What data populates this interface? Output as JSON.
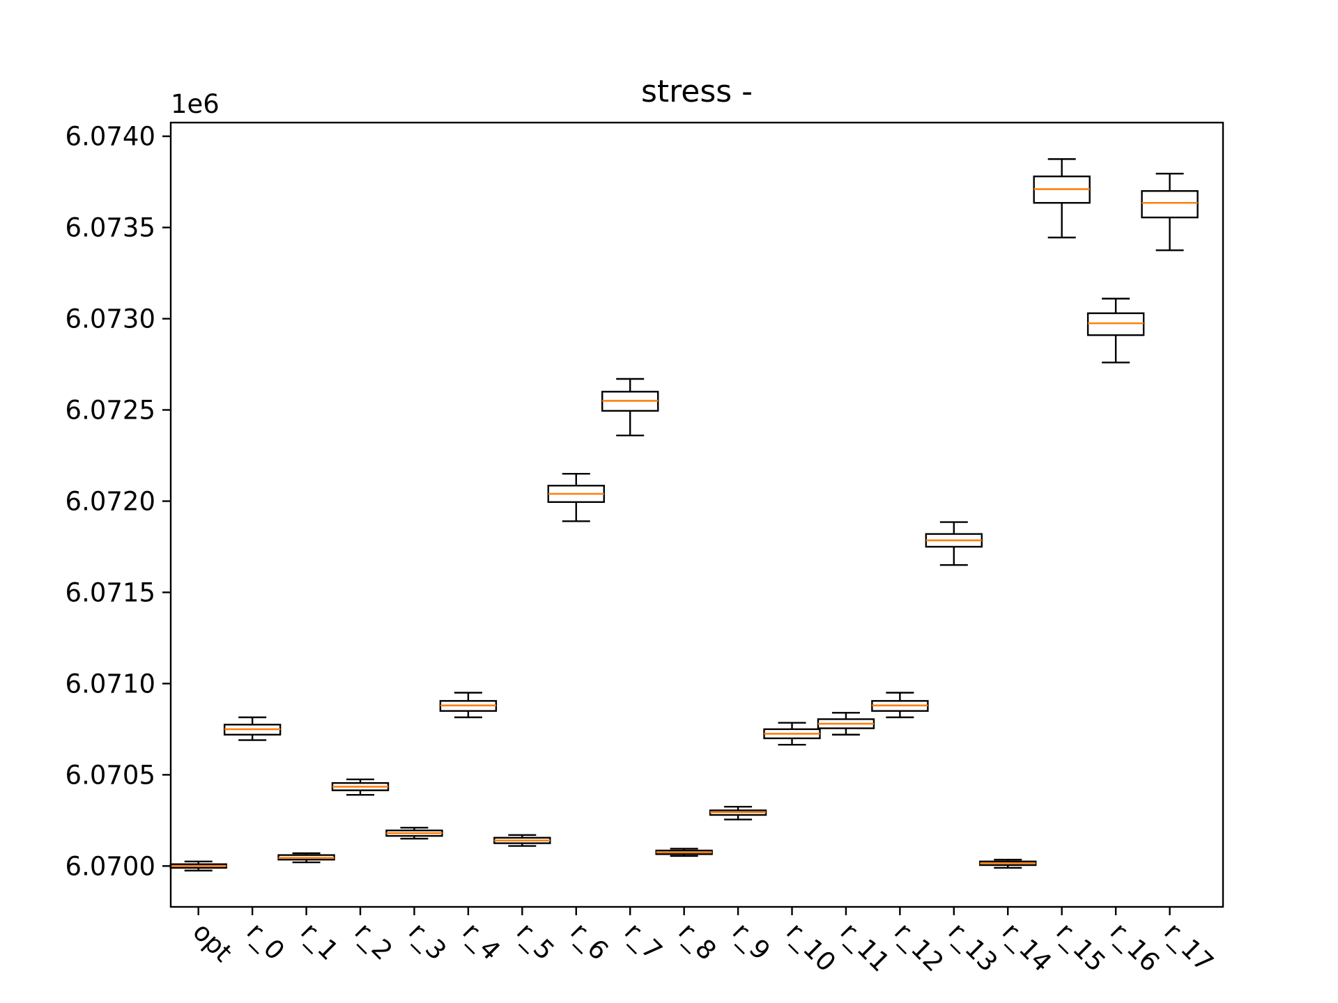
{
  "chart_data": {
    "type": "boxplot",
    "title": "stress -",
    "xlabel": "",
    "ylabel": "",
    "y_offset_label": "1e6",
    "ylim": [
      6069776,
      6074075
    ],
    "y_ticks": [
      6.07,
      6.0705,
      6.071,
      6.0715,
      6.072,
      6.0725,
      6.073,
      6.0735,
      6.074
    ],
    "y_tick_labels": [
      "6.0700",
      "6.0705",
      "6.0710",
      "6.0715",
      "6.0720",
      "6.0725",
      "6.0730",
      "6.0735",
      "6.0740"
    ],
    "categories": [
      "opt",
      "r_0",
      "r_1",
      "r_2",
      "r_3",
      "r_4",
      "r_5",
      "r_6",
      "r_7",
      "r_8",
      "r_9",
      "r_10",
      "r_11",
      "r_12",
      "r_13",
      "r_14",
      "r_15",
      "r_16",
      "r_17"
    ],
    "boxes": [
      {
        "whislo": 6069975,
        "q1": 6069990,
        "med": 6070000,
        "q3": 6070010,
        "whishi": 6070025
      },
      {
        "whislo": 6070690,
        "q1": 6070720,
        "med": 6070750,
        "q3": 6070775,
        "whishi": 6070815
      },
      {
        "whislo": 6070020,
        "q1": 6070035,
        "med": 6070045,
        "q3": 6070060,
        "whishi": 6070070
      },
      {
        "whislo": 6070390,
        "q1": 6070415,
        "med": 6070435,
        "q3": 6070455,
        "whishi": 6070475
      },
      {
        "whislo": 6070150,
        "q1": 6070165,
        "med": 6070180,
        "q3": 6070195,
        "whishi": 6070210
      },
      {
        "whislo": 6070815,
        "q1": 6070850,
        "med": 6070880,
        "q3": 6070905,
        "whishi": 6070950
      },
      {
        "whislo": 6070110,
        "q1": 6070125,
        "med": 6070140,
        "q3": 6070155,
        "whishi": 6070170
      },
      {
        "whislo": 6071890,
        "q1": 6071995,
        "med": 6072040,
        "q3": 6072085,
        "whishi": 6072150
      },
      {
        "whislo": 6072360,
        "q1": 6072495,
        "med": 6072550,
        "q3": 6072600,
        "whishi": 6072670
      },
      {
        "whislo": 6070055,
        "q1": 6070065,
        "med": 6070075,
        "q3": 6070085,
        "whishi": 6070095
      },
      {
        "whislo": 6070255,
        "q1": 6070280,
        "med": 6070295,
        "q3": 6070305,
        "whishi": 6070325
      },
      {
        "whislo": 6070665,
        "q1": 6070700,
        "med": 6070725,
        "q3": 6070750,
        "whishi": 6070785
      },
      {
        "whislo": 6070720,
        "q1": 6070755,
        "med": 6070780,
        "q3": 6070805,
        "whishi": 6070840
      },
      {
        "whislo": 6070815,
        "q1": 6070850,
        "med": 6070880,
        "q3": 6070905,
        "whishi": 6070950
      },
      {
        "whislo": 6071650,
        "q1": 6071750,
        "med": 6071785,
        "q3": 6071820,
        "whishi": 6071885
      },
      {
        "whislo": 6069990,
        "q1": 6070005,
        "med": 6070015,
        "q3": 6070025,
        "whishi": 6070035
      },
      {
        "whislo": 6073445,
        "q1": 6073635,
        "med": 6073710,
        "q3": 6073780,
        "whishi": 6073875
      },
      {
        "whislo": 6072760,
        "q1": 6072910,
        "med": 6072975,
        "q3": 6073030,
        "whishi": 6073110
      },
      {
        "whislo": 6073375,
        "q1": 6073555,
        "med": 6073635,
        "q3": 6073700,
        "whishi": 6073795
      }
    ],
    "colors": {
      "box": "#000000",
      "median": "#ff7f0e",
      "axes": "#000000",
      "background": "#ffffff"
    },
    "grid": false,
    "legend": "none"
  }
}
